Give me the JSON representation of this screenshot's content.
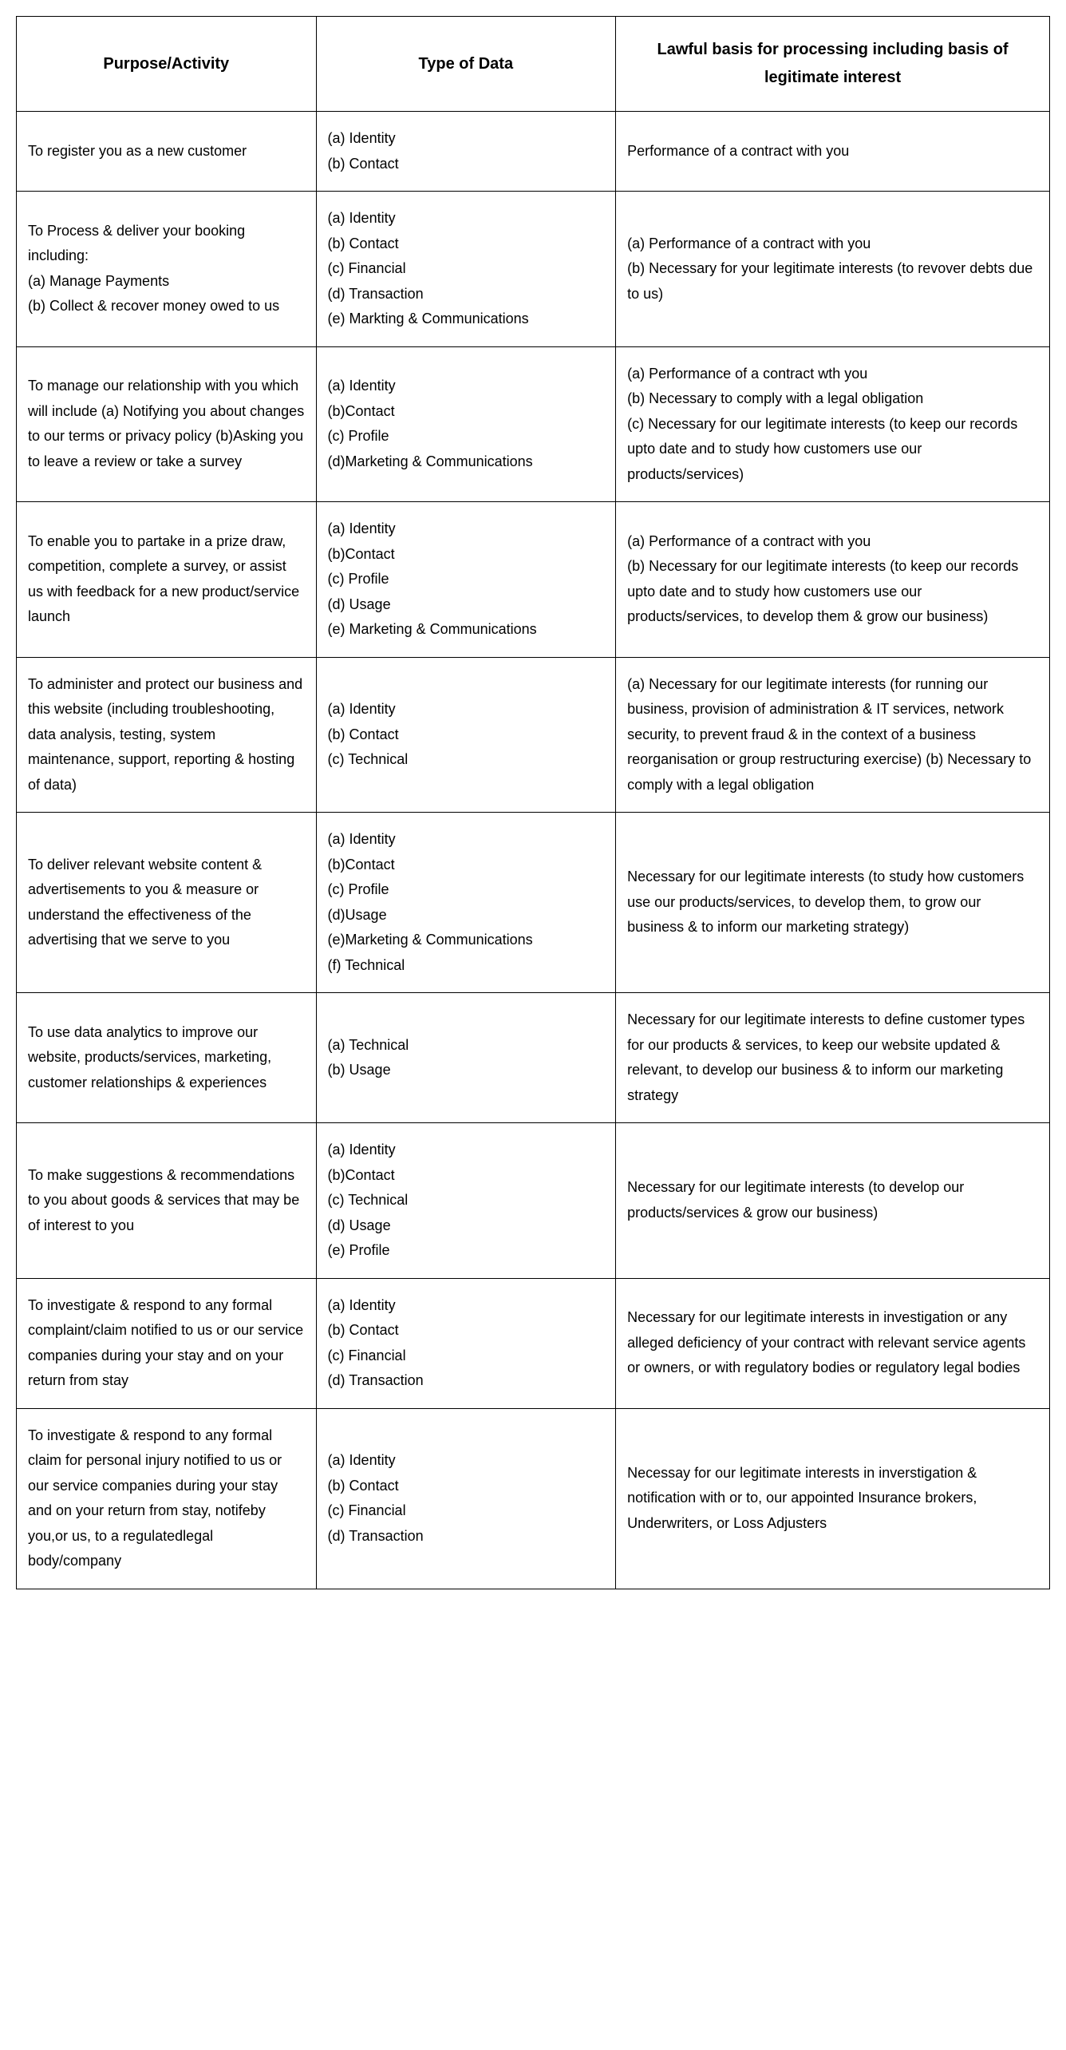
{
  "table": {
    "border_color": "#000000",
    "background_color": "#ffffff",
    "text_color": "#000000",
    "font_family": "Arial, Helvetica, sans-serif",
    "header_fontsize": 20,
    "body_fontsize": 18,
    "line_height": 1.75,
    "columns": [
      {
        "key": "purpose",
        "label": "Purpose/Activity",
        "width": "29%"
      },
      {
        "key": "type",
        "label": "Type of Data",
        "width": "29%"
      },
      {
        "key": "lawful",
        "label": "Lawful basis for processing including basis of legitimate interest",
        "width": "42%"
      }
    ],
    "rows": [
      {
        "purpose": "To register you as a new customer",
        "type": [
          "(a) Identity",
          "(b) Contact"
        ],
        "lawful": "Performance of a contract with you"
      },
      {
        "purpose": "To Process & deliver your booking including:\n(a) Manage Payments\n(b) Collect & recover money owed to us",
        "type": [
          "(a) Identity",
          "(b) Contact",
          "(c) Financial",
          "(d) Transaction",
          "(e) Markting & Communications"
        ],
        "lawful": "(a) Performance of a contract with you\n(b) Necessary for your legitimate interests (to revover debts due to us)"
      },
      {
        "purpose": "To manage our relationship with you which will include (a) Notifying you about changes to our terms or privacy policy (b)Asking you to leave a review or take a survey",
        "type": [
          "(a) Identity",
          "(b)Contact",
          "(c) Profile",
          "(d)Marketing & Communications"
        ],
        "lawful": "(a) Performance of a contract wth you\n(b) Necessary to comply with a legal obligation\n(c) Necessary for our legitimate interests (to keep our records upto date and to study how customers use our products/services)"
      },
      {
        "purpose": "To enable you to partake in a prize draw, competition, complete a survey, or assist us with feedback for a new product/service launch",
        "type": [
          "(a) Identity",
          "(b)Contact",
          "(c) Profile",
          "(d) Usage",
          "(e) Marketing & Communications"
        ],
        "lawful": "(a) Performance of a contract with you\n(b) Necessary for our legitimate interests (to keep our records upto date and to study how customers use our products/services, to develop them & grow our business)"
      },
      {
        "purpose": "To administer and protect our business and this website (including troubleshooting, data analysis, testing, system maintenance, support, reporting & hosting of data)",
        "type": [
          "(a) Identity",
          "(b)  Contact",
          "(c) Technical"
        ],
        "lawful": "(a) Necessary for our legitimate interests (for running our business, provision of administration & IT services, network security, to prevent fraud & in the context of a business reorganisation or group restructuring exercise)                                   (b) Necessary to comply with a legal obligation"
      },
      {
        "purpose": "To deliver relevant website content & advertisements to you & measure or understand the effectiveness of the advertising that we serve to you",
        "type": [
          "(a) Identity",
          "(b)Contact",
          "(c) Profile",
          "(d)Usage",
          "(e)Marketing & Communications",
          "(f) Technical"
        ],
        "lawful": "Necessary for our legitimate interests (to study how customers use our products/services, to develop them, to grow our business & to inform our marketing strategy)"
      },
      {
        "purpose": "To use data analytics to improve our website, products/services, marketing, customer relationships & experiences",
        "type": [
          "(a) Technical",
          "(b) Usage"
        ],
        "lawful": "Necessary for our legitimate interests to define customer types for our products & services, to keep our website updated & relevant, to develop our business & to inform our marketing strategy"
      },
      {
        "purpose": "To make suggestions & recommendations to you about goods & services that may be of interest to you",
        "type": [
          "(a) Identity",
          "(b)Contact",
          "(c) Technical",
          "(d) Usage",
          "(e) Profile"
        ],
        "lawful": "Necessary for our legitimate interests (to develop our products/services & grow our business)"
      },
      {
        "purpose": "To investigate & respond to any formal complaint/claim notified to us or our service companies during your stay and on your return from stay",
        "type": [
          "(a) Identity",
          "(b) Contact",
          "(c) Financial",
          "(d) Transaction"
        ],
        "lawful": "Necessary for our legitimate interests in investigation or any alleged deficiency of your contract with relevant service agents or owners, or with regulatory bodies or regulatory legal bodies"
      },
      {
        "purpose": "To investigate & respond to any formal claim for personal injury notified to us or our service companies during your stay and on your return from stay, notifeby you,or us, to a regulatedlegal body/company",
        "type": [
          "(a) Identity",
          "(b) Contact",
          "(c) Financial",
          "(d) Transaction"
        ],
        "lawful": "Necessay for our legitimate interests in inverstigation & notification with or to, our appointed Insurance brokers, Underwriters, or Loss Adjusters"
      }
    ]
  }
}
